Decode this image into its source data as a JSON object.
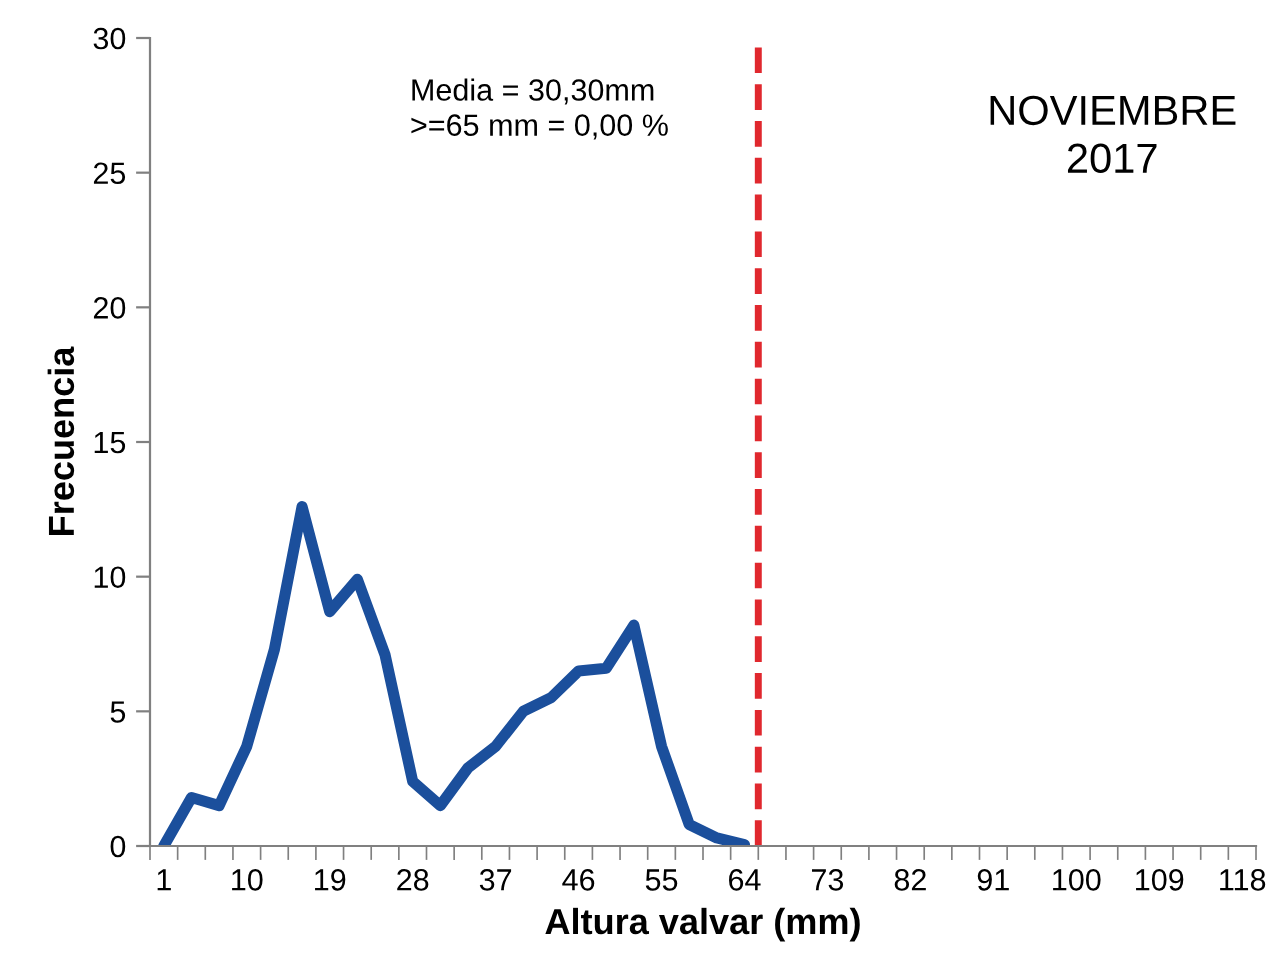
{
  "chart_data": {
    "type": "line",
    "xlabel": "Altura valvar (mm)",
    "ylabel": "Frecuencia",
    "x": [
      1,
      4,
      7,
      10,
      13,
      16,
      19,
      22,
      25,
      28,
      31,
      34,
      37,
      40,
      43,
      46,
      49,
      52,
      55,
      58,
      61,
      64
    ],
    "series": [
      {
        "color": "#1b4f9c",
        "values": [
          0,
          1.8,
          1.5,
          3.7,
          7.3,
          12.6,
          8.7,
          9.9,
          7.1,
          2.4,
          1.5,
          2.9,
          3.7,
          5.0,
          5.5,
          6.5,
          6.6,
          8.2,
          3.7,
          0.8,
          0.3,
          0.05
        ]
      }
    ],
    "xlim": [
      -0.5,
      119.5
    ],
    "xticks": [
      1,
      10,
      19,
      28,
      37,
      46,
      55,
      64,
      73,
      82,
      91,
      100,
      109,
      118,
      {
        "value": -0.5,
        "label": null
      },
      {
        "value": 2.5,
        "label": null
      },
      {
        "value": 5.5,
        "label": null
      },
      {
        "value": 8.5,
        "label": null
      },
      {
        "value": 11.5,
        "label": null
      },
      {
        "value": 14.5,
        "label": null
      },
      {
        "value": 17.5,
        "label": null
      },
      {
        "value": 20.5,
        "label": null
      },
      {
        "value": 23.5,
        "label": null
      },
      {
        "value": 26.5,
        "label": null
      },
      {
        "value": 29.5,
        "label": null
      },
      {
        "value": 32.5,
        "label": null
      },
      {
        "value": 35.5,
        "label": null
      },
      {
        "value": 38.5,
        "label": null
      },
      {
        "value": 41.5,
        "label": null
      },
      {
        "value": 44.5,
        "label": null
      },
      {
        "value": 47.5,
        "label": null
      },
      {
        "value": 50.5,
        "label": null
      },
      {
        "value": 53.5,
        "label": null
      },
      {
        "value": 56.5,
        "label": null
      },
      {
        "value": 59.5,
        "label": null
      },
      {
        "value": 62.5,
        "label": null
      },
      {
        "value": 65.5,
        "label": null
      },
      {
        "value": 68.5,
        "label": null
      },
      {
        "value": 71.5,
        "label": null
      },
      {
        "value": 74.5,
        "label": null
      },
      {
        "value": 77.5,
        "label": null
      },
      {
        "value": 80.5,
        "label": null
      },
      {
        "value": 83.5,
        "label": null
      },
      {
        "value": 86.5,
        "label": null
      },
      {
        "value": 89.5,
        "label": null
      },
      {
        "value": 92.5,
        "label": null
      },
      {
        "value": 95.5,
        "label": null
      },
      {
        "value": 98.5,
        "label": null
      },
      {
        "value": 101.5,
        "label": null
      },
      {
        "value": 104.5,
        "label": null
      },
      {
        "value": 107.5,
        "label": null
      },
      {
        "value": 110.5,
        "label": null
      },
      {
        "value": 113.5,
        "label": null
      },
      {
        "value": 116.5,
        "label": null
      },
      {
        "value": 119.5,
        "label": null
      }
    ],
    "ylim": [
      0,
      30
    ],
    "yticks": [
      0,
      5,
      10,
      15,
      20,
      25,
      30
    ],
    "grid": false,
    "legend": false,
    "marker": "none",
    "line_style": "solid",
    "ref_lines": [
      {
        "axis": "x",
        "value": 65.5,
        "color": "#e0282e",
        "line_style": "dashed"
      }
    ],
    "annotations": [
      "Media = 30,30mm\n>=65 mm = 0,00 %",
      "NOVIEMBRE\n2017"
    ]
  }
}
